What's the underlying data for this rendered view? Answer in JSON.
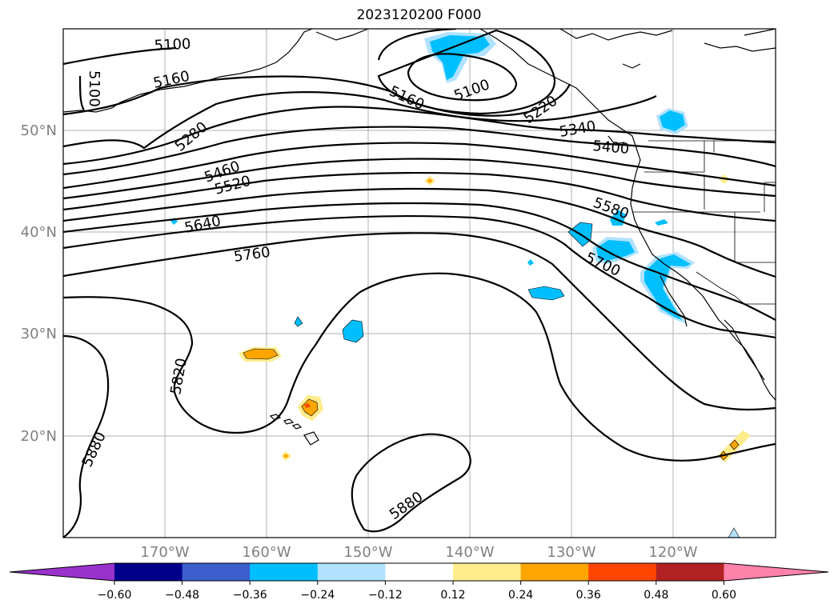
{
  "title": "2023120200 F000",
  "map": {
    "lat_labels": [
      {
        "text": "50°N",
        "lat": 50
      },
      {
        "text": "40°N",
        "lat": 40
      },
      {
        "text": "30°N",
        "lat": 30
      },
      {
        "text": "20°N",
        "lat": 20
      }
    ],
    "lon_labels": [
      {
        "text": "170°W",
        "lon": -170
      },
      {
        "text": "160°W",
        "lon": -160
      },
      {
        "text": "150°W",
        "lon": -150
      },
      {
        "text": "140°W",
        "lon": -140
      },
      {
        "text": "130°W",
        "lon": -130
      },
      {
        "text": "120°W",
        "lon": -120
      }
    ],
    "contour_labels": [
      "5100",
      "5160",
      "5220",
      "5280",
      "5340",
      "5400",
      "5460",
      "5520",
      "5580",
      "5640",
      "5700",
      "5760",
      "5820",
      "5880"
    ]
  },
  "colorbar": {
    "ticks": [
      "−0.60",
      "−0.48",
      "−0.36",
      "−0.24",
      "−0.12",
      "0.12",
      "0.24",
      "0.36",
      "0.48",
      "0.60"
    ],
    "colors": [
      "#9932cc",
      "#00008b",
      "#3a5fcd",
      "#00bfff",
      "#b0e2ff",
      "#ffffff",
      "#ffec8b",
      "#ffa500",
      "#ff4500",
      "#b22222",
      "#ff82ab"
    ]
  }
}
